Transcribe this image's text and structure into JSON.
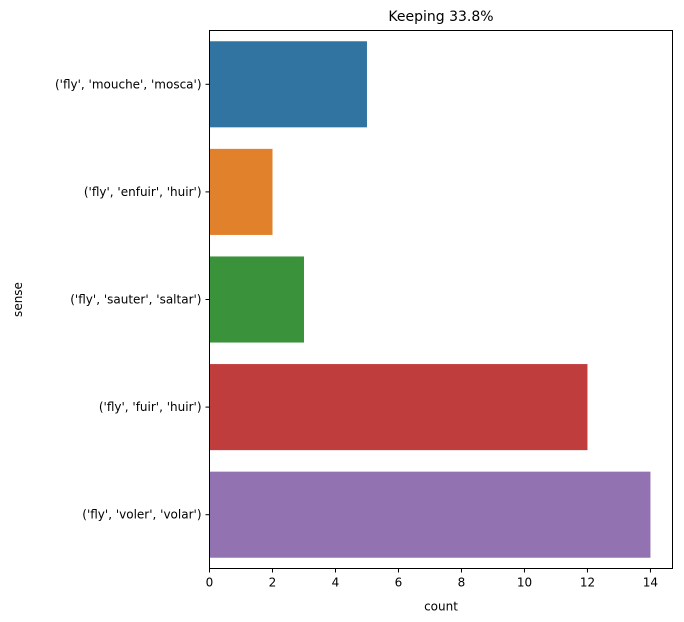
{
  "chart_data": {
    "type": "bar",
    "orientation": "horizontal",
    "title": "Keeping 33.8%",
    "xlabel": "count",
    "ylabel": "sense",
    "categories": [
      "('fly', 'mouche', 'mosca')",
      "('fly', 'enfuir', 'huir')",
      "('fly', 'sauter', 'saltar')",
      "('fly', 'fuir', 'huir')",
      "('fly', 'voler', 'volar')"
    ],
    "values": [
      5,
      2,
      3,
      12,
      14
    ],
    "colors": [
      "#3274a1",
      "#e1812c",
      "#3a923a",
      "#c03d3e",
      "#9372b2"
    ],
    "xlim": [
      0,
      14.7
    ],
    "xticks": [
      0,
      2,
      4,
      6,
      8,
      10,
      12,
      14
    ],
    "grid": false,
    "legend": "none"
  }
}
